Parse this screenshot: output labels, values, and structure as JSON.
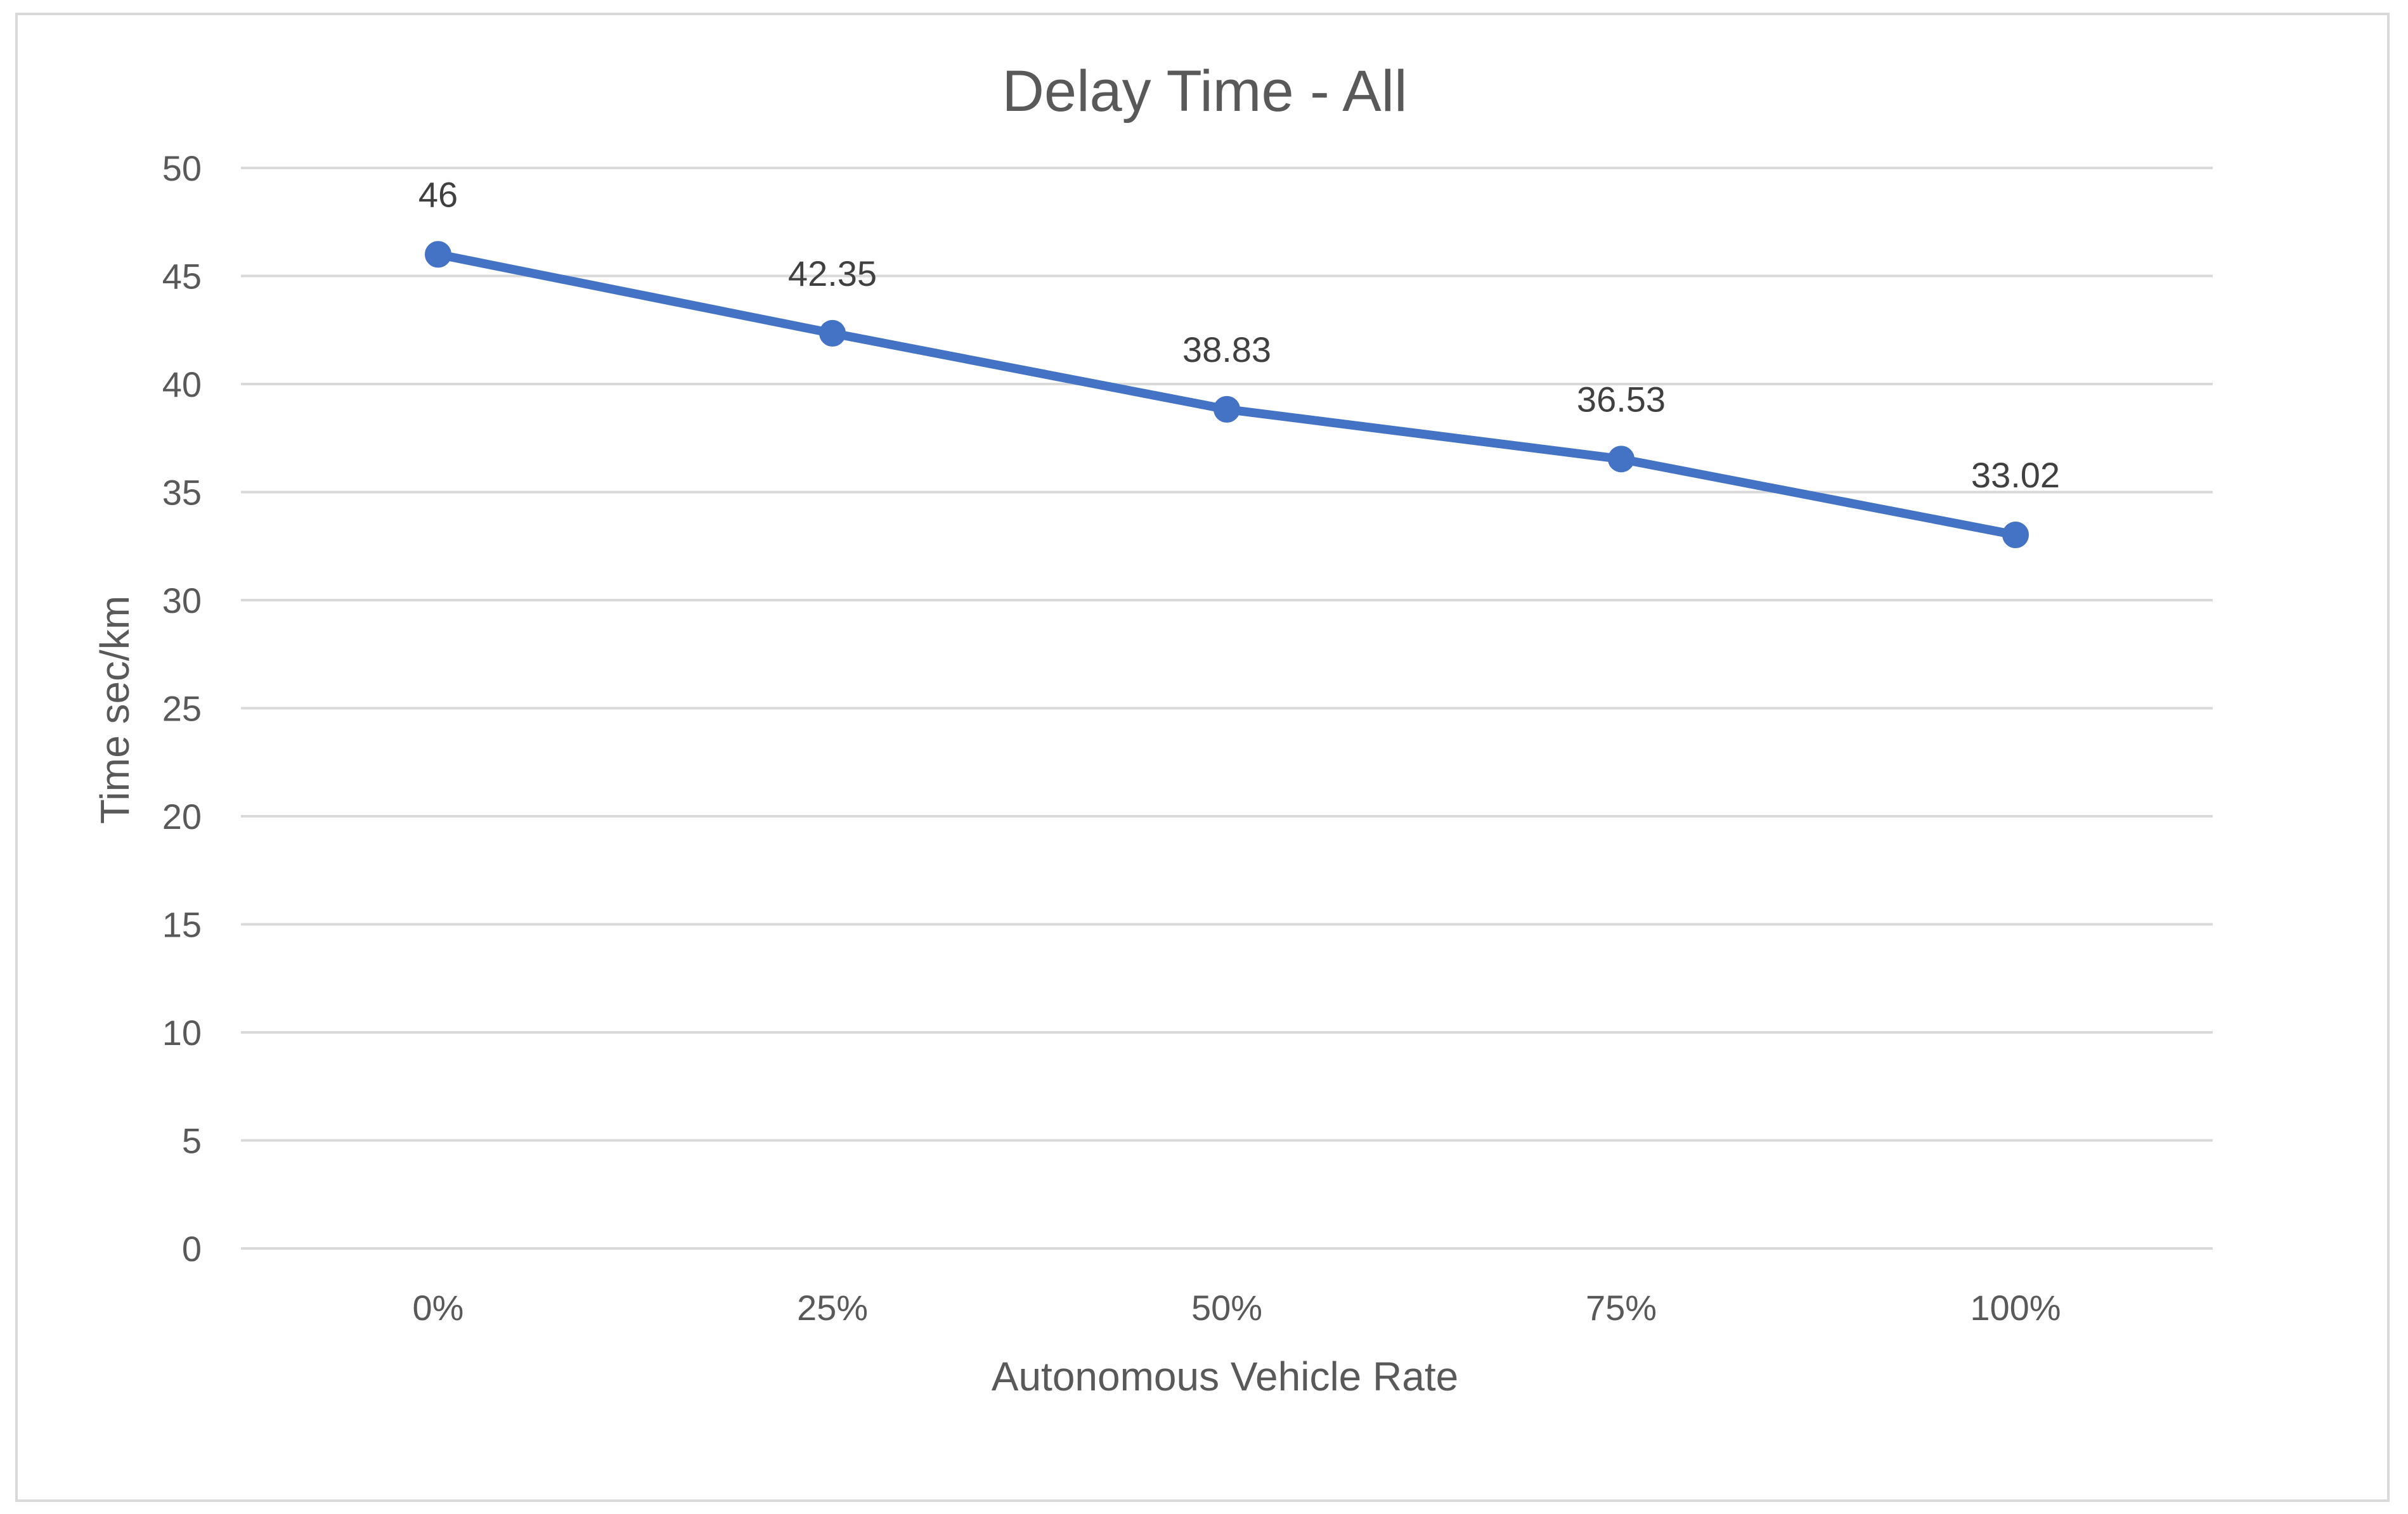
{
  "chart_data": {
    "type": "line",
    "title": "Delay Time - All",
    "xlabel": "Autonomous Vehicle Rate",
    "ylabel": "Time sec/km",
    "categories": [
      "0%",
      "25%",
      "50%",
      "75%",
      "100%"
    ],
    "series": [
      {
        "values": [
          46,
          42.35,
          38.83,
          36.53,
          33.02
        ],
        "data_labels": [
          "46",
          "42.35",
          "38.83",
          "36.53",
          "33.02"
        ],
        "color": "#4472C4"
      }
    ],
    "ylim": [
      0,
      50
    ],
    "yticks": [
      0,
      5,
      10,
      15,
      20,
      25,
      30,
      35,
      40,
      45,
      50
    ],
    "grid": "horizontal",
    "legend": "none"
  }
}
